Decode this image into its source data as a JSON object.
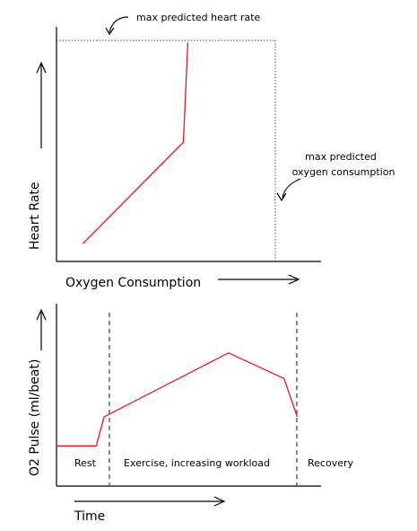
{
  "chart_data": [
    {
      "type": "line",
      "title": "",
      "xlabel": "Oxygen Consumption",
      "ylabel": "Heart Rate",
      "xlim": [
        0,
        1
      ],
      "ylim": [
        0,
        1
      ],
      "grid": false,
      "series": [
        {
          "color": "#e8141c",
          "points": [
            {
              "x": 0.12,
              "y": 0.08
            },
            {
              "x": 0.58,
              "y": 0.54
            },
            {
              "x": 0.6,
              "y": 0.99
            }
          ]
        }
      ],
      "reference_lines": {
        "max_hr": {
          "y": 1.0,
          "label": "max predicted heart rate"
        },
        "max_vo2": {
          "x": 1.0,
          "label": [
            "max predicted",
            "oxygen consumption"
          ]
        }
      }
    },
    {
      "type": "line",
      "title": "",
      "xlabel": "Time",
      "ylabel": "O2 Pulse (ml/beat)",
      "xlim": [
        0,
        1
      ],
      "ylim": [
        0,
        1
      ],
      "grid": false,
      "series": [
        {
          "color": "#e8141c",
          "points": [
            {
              "x": 0.0,
              "y": 0.22
            },
            {
              "x": 0.15,
              "y": 0.22
            },
            {
              "x": 0.18,
              "y": 0.38
            },
            {
              "x": 0.65,
              "y": 0.73
            },
            {
              "x": 0.86,
              "y": 0.59
            },
            {
              "x": 0.91,
              "y": 0.38
            }
          ]
        }
      ],
      "phases": {
        "boundaries": [
          0.15,
          0.8
        ],
        "labels": [
          "Rest",
          "Exercise, increasing workload",
          "Recovery"
        ]
      }
    }
  ]
}
